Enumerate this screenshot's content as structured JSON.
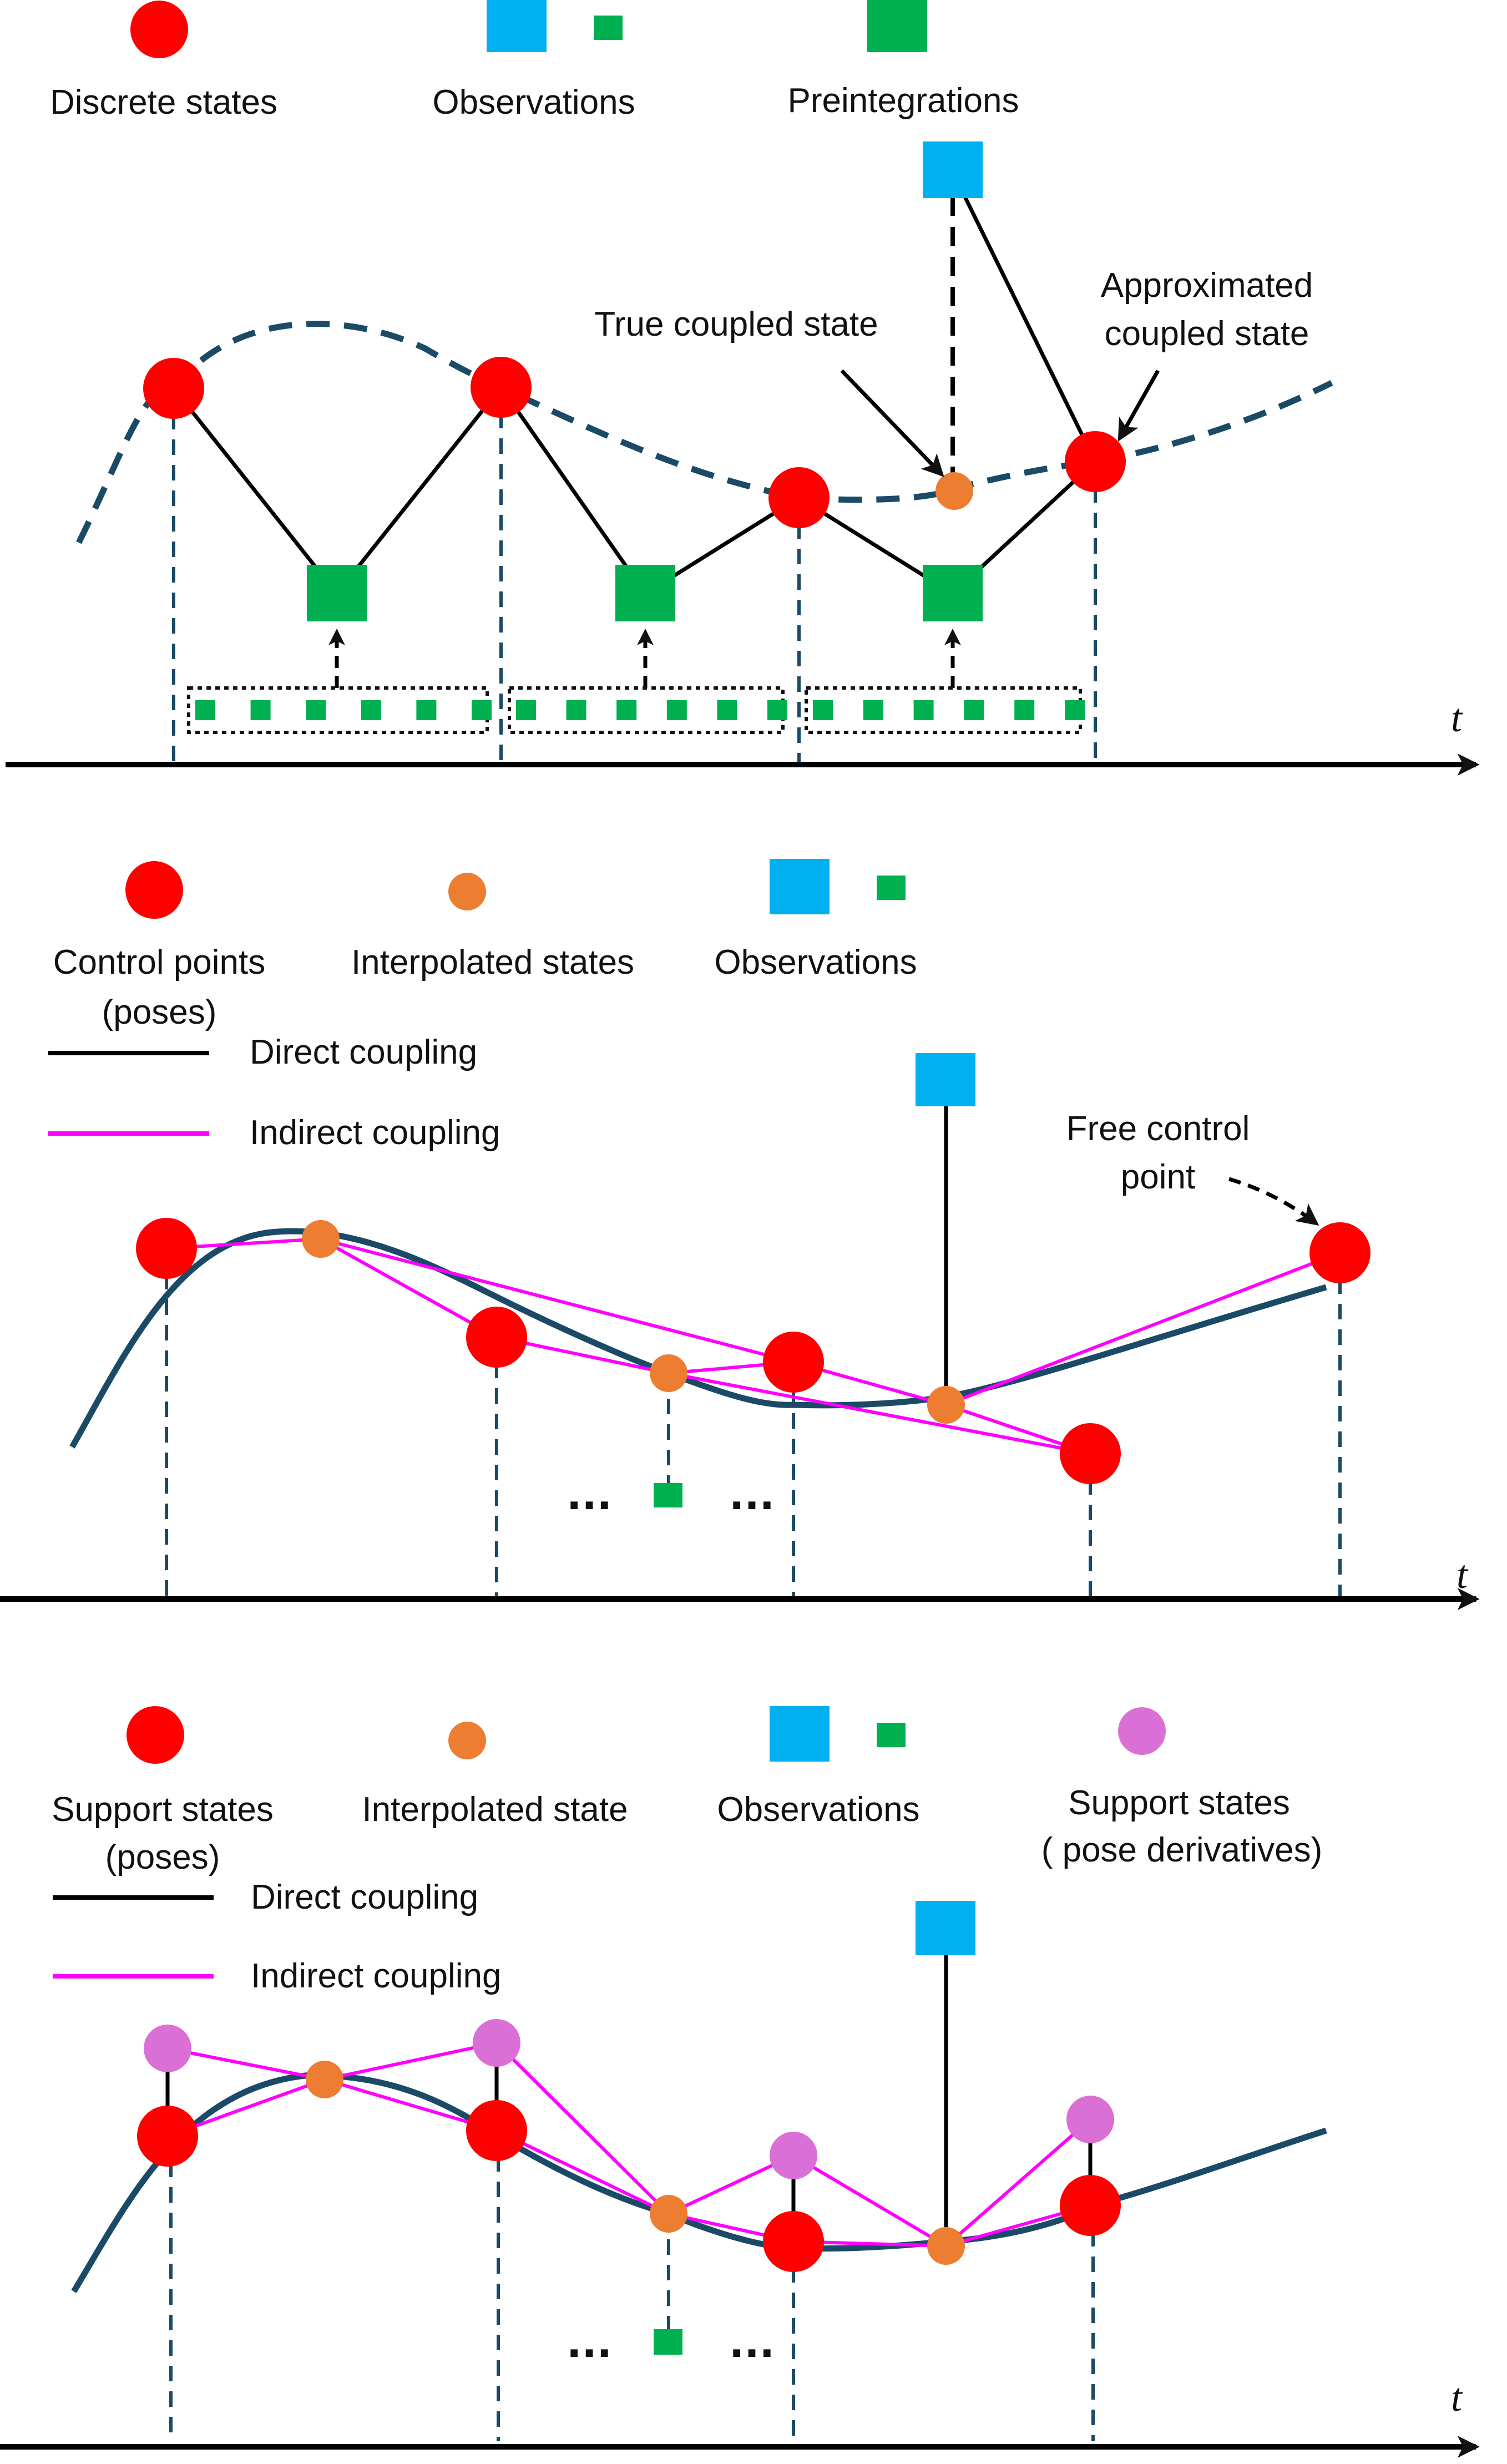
{
  "colors": {
    "red_state": "#ff0000",
    "orange_state": "#ed7d31",
    "violet_state": "#da70d6",
    "observation_blue": "#00b0f0",
    "observation_green": "#00b050",
    "curve": "#1a4a66",
    "indirect": "#ff00ff",
    "direct": "#000000"
  },
  "panel1": {
    "legend": {
      "discrete_states": "Discrete states",
      "observations": "Observations",
      "preintegrations": "Preintegrations"
    },
    "annotations": {
      "true_coupled": "True coupled state",
      "approx_line1": "Approximated",
      "approx_line2": "coupled state"
    },
    "axis_label": "t"
  },
  "panel2": {
    "legend": {
      "control_points_line1": "Control points",
      "control_points_line2": "(poses)",
      "interpolated_states": "Interpolated states",
      "observations": "Observations",
      "direct_coupling": "Direct coupling",
      "indirect_coupling": "Indirect coupling"
    },
    "annotations": {
      "free_line1": "Free control",
      "free_line2": "point",
      "ellipsis_left": "...",
      "ellipsis_right": "..."
    },
    "axis_label": "t"
  },
  "panel3": {
    "legend": {
      "support_states_line1": "Support states",
      "support_states_line2": "(poses)",
      "interpolated_state": "Interpolated state",
      "observations": "Observations",
      "support_deriv_line1": "Support states",
      "support_deriv_line2": "( pose derivatives)",
      "direct_coupling": "Direct coupling",
      "indirect_coupling": "Indirect coupling"
    },
    "annotations": {
      "ellipsis_left": "...",
      "ellipsis_right": "..."
    },
    "axis_label": "t"
  }
}
